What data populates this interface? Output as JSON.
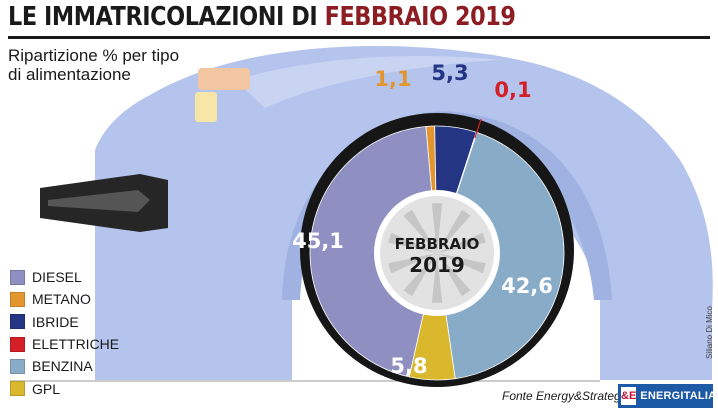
{
  "header": {
    "title_main": "LE IMMATRICOLAZIONI DI ",
    "title_accent": "FEBBRAIO 2019",
    "subtitle_line1": "Ripartizione % per tipo",
    "subtitle_line2": "di alimentazione"
  },
  "center_label": {
    "line1": "FEBBRAIO",
    "line2": "2019"
  },
  "chart_data": {
    "type": "pie",
    "title": "LE IMMATRICOLAZIONI DI FEBBRAIO 2019",
    "subtitle": "Ripartizione % per tipo di alimentazione",
    "slices": [
      {
        "label": "DIESEL",
        "value": 45.1,
        "display": "45,1",
        "color": "#8f8fc2"
      },
      {
        "label": "METANO",
        "value": 1.1,
        "display": "1,1",
        "color": "#e3962f"
      },
      {
        "label": "IBRIDE",
        "value": 5.3,
        "display": "5,3",
        "color": "#243584"
      },
      {
        "label": "ELETTRICHE",
        "value": 0.1,
        "display": "0,1",
        "color": "#d41f26"
      },
      {
        "label": "BENZINA",
        "value": 42.6,
        "display": "42,6",
        "color": "#88abc8"
      },
      {
        "label": "GPL",
        "value": 5.8,
        "display": "5,8",
        "color": "#d9b82d"
      }
    ],
    "legend_position": "bottom-left"
  },
  "footer": {
    "source": "Fonte Energy&Strategy",
    "brand": "ENERGITALIA",
    "brand_logo": "&E",
    "credit": "Siliano Di Mico"
  }
}
